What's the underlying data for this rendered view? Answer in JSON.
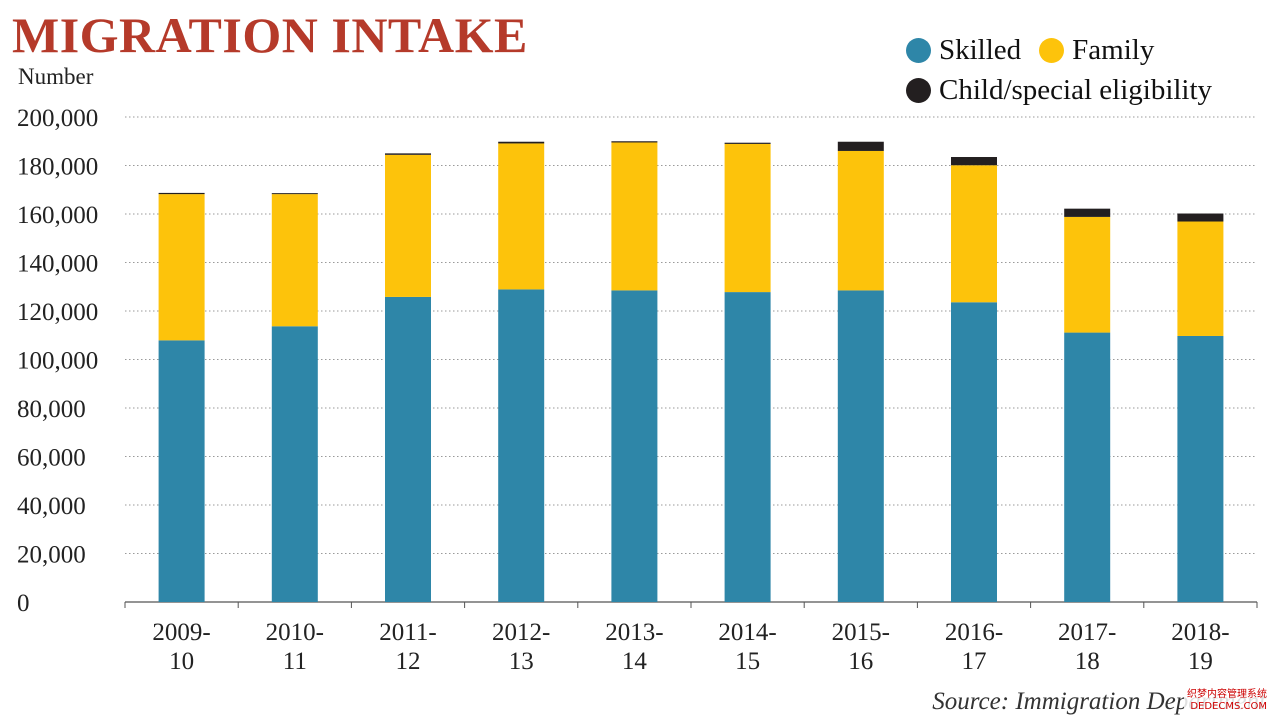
{
  "title": "MIGRATION INTAKE",
  "source": "Source: Immigration Department",
  "colors": {
    "title": "#b53a2a",
    "skilled": "#2e86a8",
    "family": "#fdc30b",
    "child": "#231f20",
    "grid": "#9a9a9a"
  },
  "watermark": {
    "line1": "织梦内容管理系统",
    "line2": "DEDECMS.COM"
  },
  "chart_data": {
    "type": "bar",
    "stacked": true,
    "title": "MIGRATION INTAKE",
    "ylabel": "Number",
    "xlabel": "",
    "ylim": [
      0,
      200000
    ],
    "yticks": [
      0,
      20000,
      40000,
      60000,
      80000,
      100000,
      120000,
      140000,
      160000,
      180000,
      200000
    ],
    "ytick_labels": [
      "0",
      "20,000",
      "40,000",
      "60,000",
      "80,000",
      "100,000",
      "120,000",
      "140,000",
      "160,000",
      "180,000",
      "200,000"
    ],
    "grid": true,
    "legend_position": "top-right",
    "categories": [
      [
        "2009-",
        "10"
      ],
      [
        "2010-",
        "11"
      ],
      [
        "2011-",
        "12"
      ],
      [
        "2012-",
        "13"
      ],
      [
        "2013-",
        "14"
      ],
      [
        "2014-",
        "15"
      ],
      [
        "2015-",
        "16"
      ],
      [
        "2016-",
        "17"
      ],
      [
        "2017-",
        "18"
      ],
      [
        "2018-",
        "19"
      ]
    ],
    "series": [
      {
        "name": "Skilled",
        "color": "#2e86a8",
        "values": [
          107900,
          113700,
          125800,
          128900,
          128500,
          127800,
          128500,
          123600,
          111100,
          109700
        ]
      },
      {
        "name": "Family",
        "color": "#fdc30b",
        "values": [
          60300,
          54500,
          58600,
          60200,
          61000,
          61100,
          57500,
          56500,
          47700,
          47200
        ]
      },
      {
        "name": "Child/special eligibility",
        "color": "#231f20",
        "values": [
          500,
          400,
          600,
          700,
          500,
          500,
          3800,
          3400,
          3400,
          3300
        ]
      }
    ]
  }
}
